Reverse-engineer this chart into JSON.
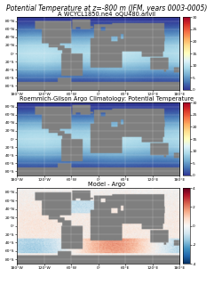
{
  "title": "Potential Temperature at z=-800 m (JFM, years 0003-0005)",
  "panel1_title": "A_WCYCL1850.ne4_oQU480.anvil",
  "panel2_title": "Roemmich-Gilson Argo Climatology: Potential Temperature",
  "panel3_title": "Model - Argo",
  "cmap1": "RdYlBu_r",
  "cmap3": "RdBu_r",
  "vmin1": 0,
  "vmax1": 30,
  "vmin3": -4,
  "vmax3": 4,
  "colorbar_ticks1": [
    0,
    5,
    10,
    15,
    20,
    25,
    30
  ],
  "colorbar_ticks3": [
    -4,
    -2,
    0,
    2,
    4
  ],
  "lat_ticks": [
    -80,
    -60,
    -40,
    -20,
    0,
    20,
    40,
    60,
    80
  ],
  "lon_ticks": [
    -180,
    -120,
    -60,
    0,
    60,
    120,
    180
  ],
  "lon_labels": [
    "180°W",
    "120°W",
    "60°W",
    "0°",
    "60°E",
    "120°E",
    "180°E"
  ],
  "lat_labels": [
    "80°S",
    "60°S",
    "40°S",
    "20°S",
    "0°",
    "20°N",
    "40°N",
    "60°N",
    "80°N"
  ],
  "land_color": [
    0.5,
    0.5,
    0.5,
    1.0
  ],
  "title_fontsize": 5.5,
  "panel_title_fontsize": 4.8,
  "tick_fontsize": 3.2
}
